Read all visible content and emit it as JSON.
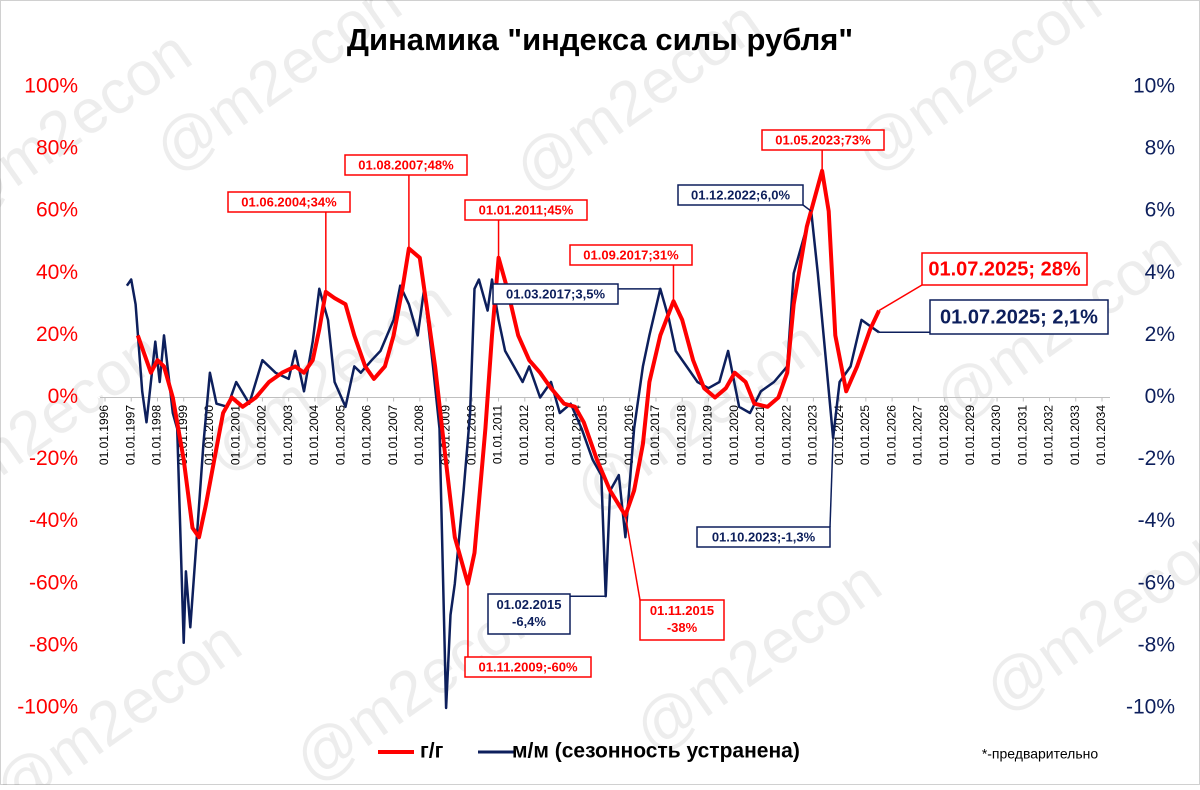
{
  "chart_data": {
    "type": "line",
    "title": "Динамика \"индекса силы рубля\"",
    "note": "*-предварительно",
    "watermark": "@m2econ",
    "xlim": [
      "01.01.1996",
      "01.01.2034"
    ],
    "xticks": [
      "01.01.1996",
      "01.01.1997",
      "01.01.1998",
      "01.01.1999",
      "01.01.2000",
      "01.01.2001",
      "01.01.2002",
      "01.01.2003",
      "01.01.2004",
      "01.01.2005",
      "01.01.2006",
      "01.01.2007",
      "01.01.2008",
      "01.01.2009",
      "01.01.2010",
      "01.01.2011",
      "01.01.2012",
      "01.01.2013",
      "01.01.2014",
      "01.01.2015",
      "01.01.2016",
      "01.01.2017",
      "01.01.2018",
      "01.01.2019",
      "01.01.2020",
      "01.01.2021",
      "01.01.2022",
      "01.01.2023",
      "01.01.2024",
      "01.01.2025",
      "01.01.2026",
      "01.01.2027",
      "01.01.2028",
      "01.01.2029",
      "01.01.2030",
      "01.01.2031",
      "01.01.2032",
      "01.01.2033",
      "01.01.2034"
    ],
    "ylim": [
      -100,
      100
    ],
    "yticks": [
      {
        "value": -100,
        "label": "-100%"
      },
      {
        "value": -80,
        "label": "-80%"
      },
      {
        "value": -60,
        "label": "-60%"
      },
      {
        "value": -40,
        "label": "-40%"
      },
      {
        "value": -20,
        "label": "-20%"
      },
      {
        "value": 0,
        "label": "0%"
      },
      {
        "value": 20,
        "label": "20%"
      },
      {
        "value": 40,
        "label": "40%"
      },
      {
        "value": 60,
        "label": "60%"
      },
      {
        "value": 80,
        "label": "80%"
      },
      {
        "value": 100,
        "label": "100%"
      }
    ],
    "y2lim": [
      -10,
      10
    ],
    "y2ticks": [
      {
        "value": -10,
        "label": "-10%"
      },
      {
        "value": -8,
        "label": "-8%"
      },
      {
        "value": -6,
        "label": "-6%"
      },
      {
        "value": -4,
        "label": "-4%"
      },
      {
        "value": -2,
        "label": "-2%"
      },
      {
        "value": 0,
        "label": "0%"
      },
      {
        "value": 2,
        "label": "2%"
      },
      {
        "value": 4,
        "label": "4%"
      },
      {
        "value": 6,
        "label": "6%"
      },
      {
        "value": 8,
        "label": "8%"
      },
      {
        "value": 10,
        "label": "10%"
      }
    ],
    "series": [
      {
        "name": "г/г",
        "color": "#ff0000",
        "axis": "y",
        "x": [
          "01.04.1997",
          "01.10.1997",
          "01.01.1998",
          "01.04.1998",
          "01.08.1998",
          "01.01.1999",
          "01.05.1999",
          "01.08.1999",
          "01.11.1999",
          "01.03.2000",
          "01.07.2000",
          "01.11.2000",
          "01.04.2001",
          "01.10.2001",
          "01.04.2002",
          "01.10.2002",
          "01.04.2003",
          "01.08.2003",
          "01.12.2003",
          "01.03.2004",
          "01.06.2004",
          "01.10.2004",
          "01.03.2005",
          "01.07.2005",
          "01.12.2005",
          "01.04.2006",
          "01.09.2006",
          "01.01.2007",
          "01.05.2007",
          "01.08.2007",
          "01.01.2008",
          "01.04.2008",
          "01.08.2008",
          "01.12.2008",
          "01.05.2009",
          "01.11.2009",
          "01.02.2010",
          "01.07.2010",
          "01.10.2010",
          "01.01.2011",
          "01.05.2011",
          "01.10.2011",
          "01.03.2012",
          "01.08.2012",
          "01.01.2013",
          "01.07.2013",
          "01.12.2013",
          "01.04.2014",
          "01.10.2014",
          "01.04.2015",
          "01.11.2015",
          "01.03.2016",
          "01.07.2016",
          "01.10.2016",
          "01.03.2017",
          "01.09.2017",
          "01.01.2018",
          "01.06.2018",
          "01.11.2018",
          "01.04.2019",
          "01.09.2019",
          "01.01.2020",
          "01.06.2020",
          "01.10.2020",
          "01.04.2021",
          "01.09.2021",
          "01.01.2022",
          "01.04.2022",
          "01.10.2022",
          "01.05.2023",
          "01.08.2023",
          "01.11.2023",
          "01.04.2024",
          "01.09.2024",
          "01.03.2025",
          "01.07.2025"
        ],
        "values": [
          20,
          8,
          12,
          10,
          0,
          -20,
          -42,
          -45,
          -35,
          -20,
          -5,
          0,
          -3,
          0,
          5,
          8,
          10,
          8,
          12,
          22,
          34,
          32,
          30,
          20,
          10,
          6,
          10,
          20,
          35,
          48,
          45,
          30,
          10,
          -15,
          -45,
          -60,
          -50,
          -10,
          20,
          45,
          35,
          20,
          12,
          8,
          3,
          -2,
          -3,
          -8,
          -20,
          -30,
          -38,
          -30,
          -15,
          5,
          20,
          31,
          25,
          12,
          3,
          0,
          3,
          8,
          5,
          -2,
          -3,
          0,
          8,
          30,
          55,
          73,
          60,
          20,
          2,
          10,
          22,
          28
        ],
        "annotations": [
          "01.06.2004;34%",
          "01.08.2007;48%",
          "01.01.2011;45%",
          "01.11.2009;-60%",
          [
            "01.11.2015",
            "-38%"
          ],
          "01.09.2017;31%",
          "01.05.2023;73%",
          "01.07.2025; 28%"
        ]
      },
      {
        "name": "м/м (сезонность устранена)",
        "color": "#0d1f5c",
        "axis": "y2",
        "x": [
          "01.11.1996",
          "01.01.1997",
          "01.03.1997",
          "01.06.1997",
          "01.08.1997",
          "01.12.1997",
          "01.02.1998",
          "01.04.1998",
          "01.08.1998",
          "01.10.1998",
          "01.01.1999",
          "01.02.1999",
          "01.04.1999",
          "01.07.1999",
          "01.10.1999",
          "01.01.2000",
          "01.04.2000",
          "01.09.2000",
          "01.01.2001",
          "01.07.2001",
          "01.01.2002",
          "01.07.2002",
          "01.01.2003",
          "01.04.2003",
          "01.08.2003",
          "01.12.2003",
          "01.03.2004",
          "01.07.2004",
          "01.10.2004",
          "01.03.2005",
          "01.07.2005",
          "01.10.2005",
          "01.03.2006",
          "01.07.2006",
          "01.01.2007",
          "01.04.2007",
          "01.08.2007",
          "01.12.2007",
          "01.03.2008",
          "01.07.2008",
          "01.10.2008",
          "01.01.2009",
          "01.03.2009",
          "01.05.2009",
          "01.09.2009",
          "01.12.2009",
          "01.02.2010",
          "01.04.2010",
          "01.08.2010",
          "01.10.2010",
          "01.01.2011",
          "01.04.2011",
          "01.08.2011",
          "01.12.2011",
          "01.03.2012",
          "01.08.2012",
          "01.01.2013",
          "01.05.2013",
          "01.10.2013",
          "01.03.2014",
          "01.08.2014",
          "01.12.2014",
          "01.02.2015",
          "01.04.2015",
          "01.08.2015",
          "01.11.2015",
          "01.03.2016",
          "01.07.2016",
          "01.10.2016",
          "01.03.2017",
          "01.07.2017",
          "01.10.2017",
          "01.03.2018",
          "01.08.2018",
          "01.01.2019",
          "01.06.2019",
          "01.10.2019",
          "01.03.2020",
          "01.08.2020",
          "01.01.2021",
          "01.07.2021",
          "01.01.2022",
          "01.04.2022",
          "01.08.2022",
          "01.12.2022",
          "01.03.2023",
          "01.07.2023",
          "01.10.2023",
          "01.01.2024",
          "01.06.2024",
          "01.11.2024",
          "01.03.2025",
          "01.07.2025"
        ],
        "values": [
          3.6,
          3.8,
          3.0,
          0.2,
          -0.8,
          1.8,
          0.5,
          2.0,
          -0.5,
          -1.0,
          -7.9,
          -5.6,
          -7.4,
          -4.5,
          -1.5,
          0.8,
          -0.2,
          -0.3,
          0.5,
          -0.2,
          1.2,
          0.8,
          0.6,
          1.5,
          0.2,
          1.8,
          3.5,
          2.5,
          0.5,
          -0.3,
          1.0,
          0.8,
          1.2,
          1.5,
          2.5,
          3.6,
          3.0,
          2.0,
          3.5,
          1.0,
          -1.0,
          -10.0,
          -7.0,
          -6.0,
          -3.0,
          -0.5,
          3.5,
          3.8,
          2.8,
          3.8,
          2.5,
          1.5,
          1.0,
          0.5,
          1.0,
          0.0,
          0.5,
          -0.5,
          -0.2,
          -1.0,
          -2.0,
          -2.5,
          -6.4,
          -3.0,
          -2.5,
          -4.5,
          -1.0,
          1.0,
          2.0,
          3.5,
          2.5,
          1.5,
          1.0,
          0.5,
          0.3,
          0.5,
          1.5,
          -0.3,
          -0.5,
          0.2,
          0.5,
          1.0,
          4.0,
          5.0,
          6.0,
          4.0,
          1.0,
          -1.3,
          0.5,
          1.0,
          2.5,
          2.3,
          2.1
        ],
        "annotations": [
          "01.12.2022;6,0%",
          "01.03.2017;3,5%",
          [
            "01.02.2015",
            "-6,4%"
          ],
          "01.10.2023;-1,3%",
          "01.07.2025; 2,1%"
        ]
      }
    ]
  }
}
